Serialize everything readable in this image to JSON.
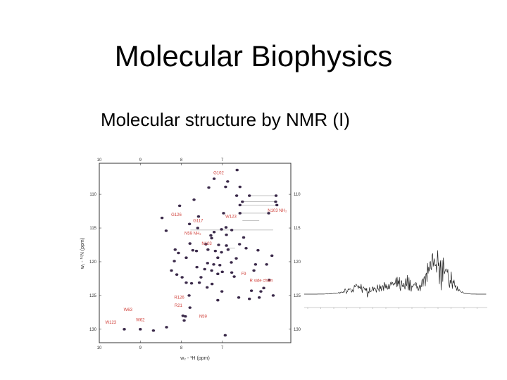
{
  "slide": {
    "title": "Molecular Biophysics",
    "subtitle": "Molecular structure by NMR (I)"
  },
  "chart_data": [
    {
      "type": "scatter",
      "xlabel": "w₂ - ¹H (ppm)",
      "ylabel": "w₁ - ¹⁵N (ppm)",
      "xlim": [
        10,
        5.33
      ],
      "ylim": [
        105.4,
        132
      ],
      "x_ticks": [
        10,
        9,
        8,
        7
      ],
      "y_ticks": [
        110,
        115,
        120,
        125,
        130
      ],
      "grid": false,
      "colors": {
        "peak": "#3b2a4a",
        "label": "#d0403a",
        "frame": "#333333"
      },
      "peaks": [
        [
          6.64,
          106.4
        ],
        [
          7.2,
          107.7
        ],
        [
          6.87,
          108.1
        ],
        [
          7.33,
          109
        ],
        [
          6.92,
          108.9
        ],
        [
          6.57,
          108.9
        ],
        [
          7.69,
          110.8
        ],
        [
          6.65,
          110.2
        ],
        [
          8.04,
          111.7
        ],
        [
          8.47,
          113.5
        ],
        [
          6.97,
          112.8
        ],
        [
          7.58,
          113.3
        ],
        [
          7.8,
          114.4
        ],
        [
          8.37,
          115.4
        ],
        [
          7.6,
          115
        ],
        [
          7.2,
          115.6
        ],
        [
          7.02,
          115.2
        ],
        [
          6.91,
          114.9
        ],
        [
          6.77,
          115.3
        ],
        [
          6.9,
          116
        ],
        [
          7.26,
          116.5
        ],
        [
          7.28,
          116.1
        ],
        [
          6.48,
          116.4
        ],
        [
          7.79,
          117.3
        ],
        [
          7.4,
          117.4
        ],
        [
          7.09,
          117.5
        ],
        [
          6.9,
          117.6
        ],
        [
          6.58,
          117.4
        ],
        [
          8.15,
          118.2
        ],
        [
          8.07,
          118.7
        ],
        [
          7.72,
          118.3
        ],
        [
          7.63,
          118.4
        ],
        [
          7.35,
          118.2
        ],
        [
          7.17,
          118.4
        ],
        [
          7.02,
          118.6
        ],
        [
          6.86,
          118.2
        ],
        [
          6.42,
          118
        ],
        [
          6.13,
          118.3
        ],
        [
          6.66,
          119.5
        ],
        [
          7.88,
          119.4
        ],
        [
          7.11,
          119.4
        ],
        [
          8.17,
          119.9
        ],
        [
          7.36,
          120.2
        ],
        [
          7.21,
          120.4
        ],
        [
          7.06,
          120.5
        ],
        [
          6.78,
          120.1
        ],
        [
          6.19,
          120.4
        ],
        [
          5.92,
          120.4
        ],
        [
          5.79,
          119.1
        ],
        [
          7.62,
          120.8
        ],
        [
          7.43,
          121.1
        ],
        [
          7.26,
          121.3
        ],
        [
          7.0,
          121.5
        ],
        [
          8.24,
          121.3
        ],
        [
          8.11,
          121.9
        ],
        [
          7.98,
          122.3
        ],
        [
          7.52,
          122.3
        ],
        [
          7.11,
          121.8
        ],
        [
          6.77,
          121.6
        ],
        [
          6.71,
          122.2
        ],
        [
          6.23,
          121.3
        ],
        [
          7.88,
          123.1
        ],
        [
          7.75,
          123.2
        ],
        [
          7.56,
          123.1
        ],
        [
          7.37,
          123.8
        ],
        [
          7.25,
          123.3
        ],
        [
          5.86,
          122.7
        ],
        [
          7.01,
          124.4
        ],
        [
          6.29,
          124.3
        ],
        [
          6.06,
          124.4
        ],
        [
          5.99,
          123.9
        ],
        [
          6.6,
          125.3
        ],
        [
          6.34,
          125.5
        ],
        [
          7.81,
          125
        ],
        [
          7.11,
          125.7
        ],
        [
          5.76,
          125
        ],
        [
          6.1,
          125.3
        ],
        [
          7.79,
          126.8
        ],
        [
          7.96,
          128
        ],
        [
          7.9,
          128.1
        ],
        [
          7.93,
          128.7
        ],
        [
          9.39,
          130
        ],
        [
          9.0,
          130
        ],
        [
          8.68,
          130.2
        ],
        [
          8.36,
          129.7
        ],
        [
          6.93,
          130.9
        ],
        [
          6.34,
          110.2
        ],
        [
          5.69,
          110.2
        ],
        [
          6.51,
          111.1
        ],
        [
          5.7,
          111.1
        ],
        [
          6.57,
          111.6
        ],
        [
          5.67,
          111.6
        ],
        [
          6.57,
          112.8
        ],
        [
          5.87,
          112.8
        ]
      ],
      "nh2_pairs": [
        [
          6.34,
          5.69,
          110.2
        ],
        [
          6.51,
          5.7,
          111.1
        ],
        [
          6.57,
          5.67,
          111.6
        ],
        [
          6.57,
          5.87,
          112.8
        ],
        [
          6.51,
          6.1,
          113.9
        ],
        [
          7.78,
          5.76,
          115.3
        ],
        [
          6.86,
          6.69,
          118
        ]
      ],
      "labels": [
        {
          "text": "G102",
          "x": 7.09,
          "y": 107.0
        },
        {
          "text": "G126",
          "x": 8.12,
          "y": 113.2
        },
        {
          "text": "G117",
          "x": 7.59,
          "y": 114.1
        },
        {
          "text": "N59 NH₂",
          "x": 7.72,
          "y": 116.0
        },
        {
          "text": "N103",
          "x": 7.38,
          "y": 117.5
        },
        {
          "text": "W123",
          "x": 6.79,
          "y": 113.5
        },
        {
          "text": "N103 NH₂",
          "x": 5.66,
          "y": 112.6
        },
        {
          "text": "F9",
          "x": 6.48,
          "y": 122.0
        },
        {
          "text": "R side chain",
          "x": 6.05,
          "y": 123.0
        },
        {
          "text": "R126",
          "x": 8.05,
          "y": 125.5
        },
        {
          "text": "R21",
          "x": 8.07,
          "y": 126.7
        },
        {
          "text": "N59",
          "x": 7.47,
          "y": 128.3
        },
        {
          "text": "W63",
          "x": 9.3,
          "y": 127.3
        },
        {
          "text": "W62",
          "x": 9.0,
          "y": 128.8
        },
        {
          "text": "W123",
          "x": 9.72,
          "y": 129.2
        }
      ]
    },
    {
      "type": "line",
      "description_visible": false,
      "colors": {
        "line": "#222222"
      }
    }
  ]
}
